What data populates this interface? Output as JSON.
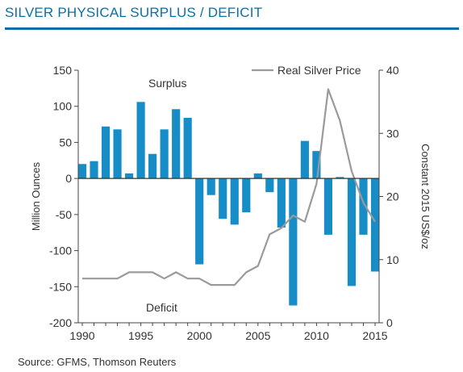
{
  "title": "SILVER PHYSICAL SURPLUS / DEFICIT",
  "source": "Source: GFMS, Thomson Reuters",
  "colors": {
    "bar": "#168dc7",
    "price_line": "#9a9a9a",
    "title": "#0d6fa6",
    "zero_line": "#333333"
  },
  "chart_data": {
    "type": "bar",
    "x": [
      1990,
      1991,
      1992,
      1993,
      1994,
      1995,
      1996,
      1997,
      1998,
      1999,
      2000,
      2001,
      2002,
      2003,
      2004,
      2005,
      2006,
      2007,
      2008,
      2009,
      2010,
      2011,
      2012,
      2013,
      2014,
      2015
    ],
    "series": [
      {
        "name": "",
        "axis": "left",
        "type": "bar",
        "values": [
          20,
          24,
          72,
          68,
          7,
          106,
          34,
          68,
          96,
          84,
          -119,
          -23,
          -56,
          -64,
          -47,
          7,
          -19,
          -68,
          -176,
          52,
          38,
          -78,
          2,
          -149,
          -78,
          -129
        ]
      },
      {
        "name": "Real Silver Price",
        "axis": "right",
        "type": "line",
        "values": [
          7,
          7,
          7,
          7,
          8,
          8,
          8,
          7,
          8,
          7,
          7,
          6,
          6,
          6,
          8,
          9,
          14,
          15,
          17,
          16,
          22,
          37,
          32,
          24,
          19,
          16
        ]
      }
    ],
    "ylabel": "Million Ounces",
    "y2label": "Constant 2015 US$/oz",
    "ylim": [
      -200,
      150
    ],
    "y2lim": [
      0,
      40
    ],
    "yticks": [
      "150",
      "100",
      "50",
      "0",
      "-50",
      "-100",
      "-150",
      "-200"
    ],
    "y2ticks": [
      "40",
      "30",
      "20",
      "10",
      "0"
    ],
    "xticks": [
      "1990",
      "1995",
      "2000",
      "2005",
      "2010",
      "2015"
    ],
    "annotations": [
      "Surplus",
      "Deficit"
    ],
    "legend": "top-right"
  }
}
